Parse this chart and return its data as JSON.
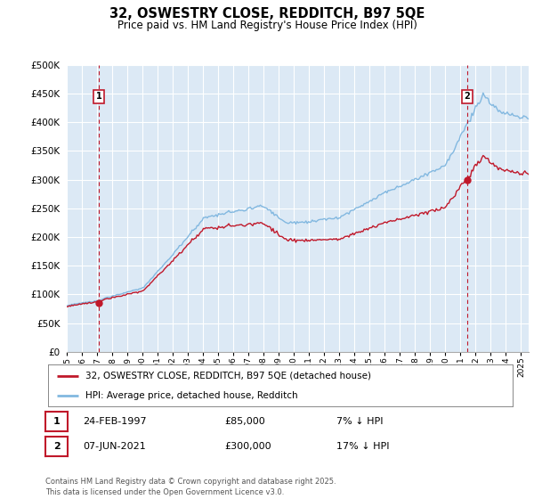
{
  "title": "32, OSWESTRY CLOSE, REDDITCH, B97 5QE",
  "subtitle": "Price paid vs. HM Land Registry's House Price Index (HPI)",
  "ylim": [
    0,
    500000
  ],
  "yticks": [
    0,
    50000,
    100000,
    150000,
    200000,
    250000,
    300000,
    350000,
    400000,
    450000,
    500000
  ],
  "ytick_labels": [
    "£0",
    "£50K",
    "£100K",
    "£150K",
    "£200K",
    "£250K",
    "£300K",
    "£350K",
    "£400K",
    "£450K",
    "£500K"
  ],
  "hpi_color": "#82b8e0",
  "price_color": "#c0182a",
  "plot_bg_color": "#dce9f5",
  "grid_color": "#ffffff",
  "fig_bg_color": "#ffffff",
  "marker1_year": 1997.12,
  "marker1_price": 85000,
  "marker2_year": 2021.44,
  "marker2_price": 300000,
  "legend_label_red": "32, OSWESTRY CLOSE, REDDITCH, B97 5QE (detached house)",
  "legend_label_blue": "HPI: Average price, detached house, Redditch",
  "note1_num": "1",
  "note1_date": "24-FEB-1997",
  "note1_price": "£85,000",
  "note1_hpi": "7% ↓ HPI",
  "note2_num": "2",
  "note2_date": "07-JUN-2021",
  "note2_price": "£300,000",
  "note2_hpi": "17% ↓ HPI",
  "footer": "Contains HM Land Registry data © Crown copyright and database right 2025.\nThis data is licensed under the Open Government Licence v3.0."
}
